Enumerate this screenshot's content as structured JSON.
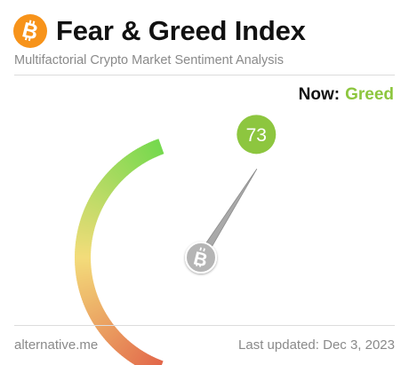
{
  "header": {
    "title": "Fear & Greed Index",
    "subtitle": "Multifactorial Crypto Market Sentiment Analysis",
    "logo_icon": "bitcoin-icon",
    "logo_color": "#f7931a"
  },
  "status": {
    "now_label": "Now:",
    "now_value": "Greed",
    "now_color": "#8dc63f"
  },
  "gauge": {
    "value": 73,
    "value_label": "73",
    "min": 0,
    "max": 100,
    "badge_color": "#8dc63f",
    "needle_color": "#a9a9a9",
    "hub_icon": "bitcoin-icon",
    "colors": [
      "#e2674a",
      "#f3dc7a",
      "#76d94e"
    ]
  },
  "footer": {
    "source": "alternative.me",
    "updated": "Last updated: Dec 3, 2023"
  }
}
